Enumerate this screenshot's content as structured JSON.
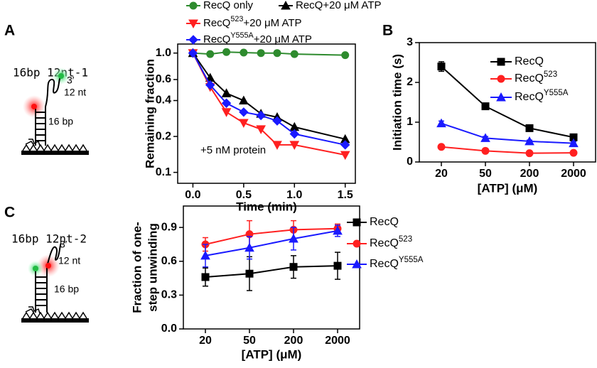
{
  "panel_labels": [
    "A",
    "B",
    "C"
  ],
  "diagrams": [
    {
      "title": "16bp 12nt-1",
      "labels": [
        "3′",
        "12 nt",
        "16 bp"
      ]
    },
    {
      "title": "16bp 12nt-2",
      "labels": [
        "3′",
        "12 nt",
        "16 bp"
      ]
    }
  ],
  "chart_data": [
    {
      "type": "line",
      "ylabel": "Remaining fraction",
      "xlabel": "Time (min)",
      "annotation": "+5 nM protein",
      "ylog": true,
      "ylim": [
        0.081,
        1.19
      ],
      "yticks": [
        0.1,
        0.2,
        0.4,
        0.6,
        {
          "value": 1,
          "label": "1.0"
        }
      ],
      "xlim": [
        -0.15,
        1.6
      ],
      "xticks": [
        {
          "value": 0,
          "label": "0.0"
        },
        0.5,
        {
          "value": 1,
          "label": "1.0"
        },
        1.5
      ],
      "x": [
        0,
        0.17,
        0.33,
        0.5,
        0.67,
        0.83,
        1.0,
        1.5
      ],
      "series": [
        {
          "name": "RecQ only",
          "color": "#2e8b2e",
          "marker": "circle",
          "values": [
            1.0,
            0.98,
            1.02,
            1.01,
            1.0,
            1.0,
            0.98,
            0.96
          ]
        },
        {
          "name": "RecQ+20 μM ATP",
          "color": "#000000",
          "marker": "triangle-up",
          "values": [
            1.0,
            0.62,
            0.46,
            0.4,
            0.31,
            0.29,
            0.24,
            0.19
          ]
        },
        {
          "name": "RecQ523+20 μM ATP",
          "color": "#ff2020",
          "marker": "triangle-down",
          "values": [
            1.0,
            0.52,
            0.32,
            0.26,
            0.23,
            0.17,
            0.17,
            0.14
          ]
        },
        {
          "name": "RecQY555A+20 μM ATP",
          "color": "#1a1aff",
          "marker": "diamond",
          "values": [
            1.0,
            0.54,
            0.38,
            0.32,
            0.3,
            0.27,
            0.21,
            0.17
          ]
        }
      ]
    },
    {
      "type": "line",
      "ylabel": "Initiation time (s)",
      "xlabel": "[ATP] (μM)",
      "ylim": [
        0,
        3
      ],
      "yticks": [
        0,
        1,
        2,
        3
      ],
      "categories": [
        "20",
        "50",
        "200",
        "2000"
      ],
      "series": [
        {
          "name": "RecQ",
          "color": "#000000",
          "marker": "square",
          "values": [
            2.4,
            1.4,
            0.85,
            0.62
          ],
          "errors": [
            0.12,
            0.05,
            0.04,
            0.04
          ]
        },
        {
          "name": "RecQ523",
          "color": "#ff2020",
          "marker": "circle",
          "values": [
            0.38,
            0.28,
            0.22,
            0.23
          ],
          "errors": [
            0.02,
            0.02,
            0.02,
            0.02
          ]
        },
        {
          "name": "RecQY555A",
          "color": "#1a1aff",
          "marker": "triangle-up",
          "values": [
            0.97,
            0.6,
            0.52,
            0.47
          ],
          "errors": [
            0.06,
            0.04,
            0.03,
            0.04
          ]
        }
      ]
    },
    {
      "type": "line",
      "ylabel": [
        "Fraction of one-",
        "step unwinding"
      ],
      "xlabel": "[ATP] (μM)",
      "ylim": [
        0,
        1.09
      ],
      "yticks": [
        {
          "value": 0,
          "label": "0.0"
        },
        0.3,
        0.6,
        0.9
      ],
      "categories": [
        "20",
        "50",
        "200",
        "2000"
      ],
      "series": [
        {
          "name": "RecQ",
          "color": "#000000",
          "marker": "square",
          "values": [
            0.46,
            0.49,
            0.55,
            0.56
          ],
          "errors": [
            0.08,
            0.15,
            0.1,
            0.12
          ]
        },
        {
          "name": "RecQ523",
          "color": "#ff2020",
          "marker": "circle",
          "values": [
            0.75,
            0.84,
            0.88,
            0.89
          ],
          "errors": [
            0.06,
            0.12,
            0.08,
            0.04
          ]
        },
        {
          "name": "RecQY555A",
          "color": "#1a1aff",
          "marker": "triangle-up",
          "values": [
            0.65,
            0.72,
            0.8,
            0.87
          ],
          "errors": [
            0.1,
            0.1,
            0.1,
            0.05
          ]
        }
      ]
    }
  ]
}
